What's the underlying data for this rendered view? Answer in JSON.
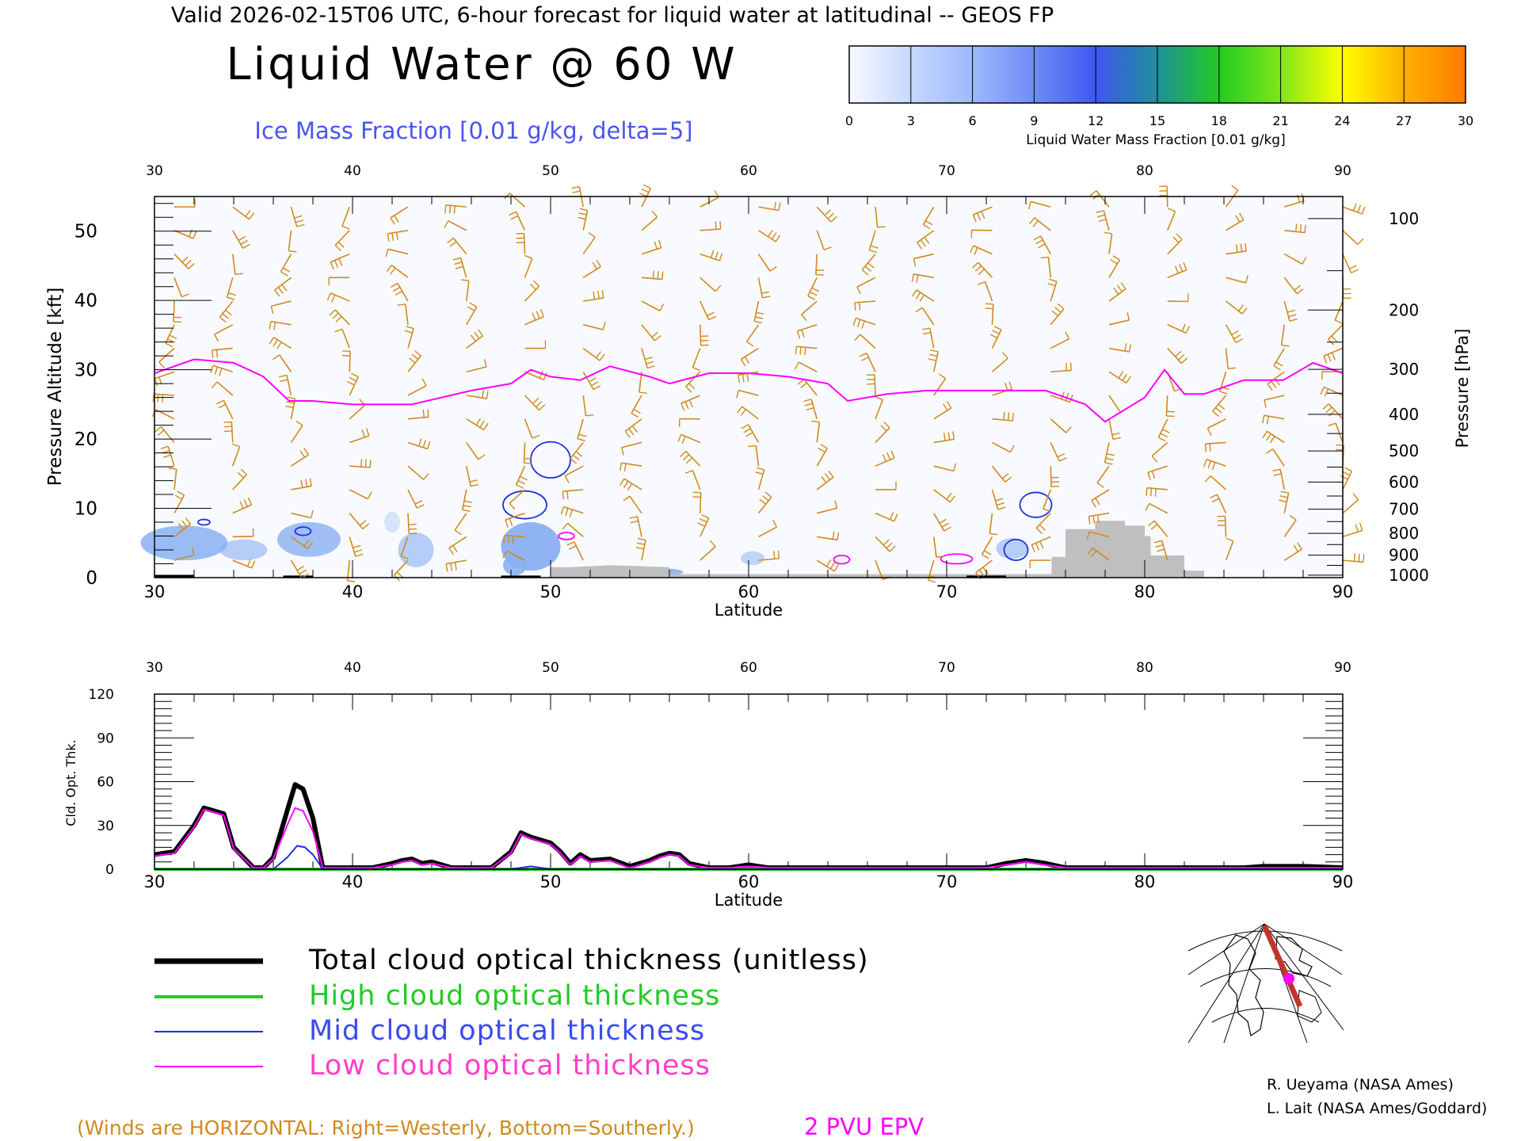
{
  "header": {
    "valid_line": "Valid 2026-02-15T06 UTC, 6-hour forecast for liquid water at latitudinal -- GEOS FP",
    "title": "Liquid Water @ 60 W",
    "subtitle": "Ice Mass Fraction [0.01 g/kg, delta=5]"
  },
  "colorbar": {
    "ticks": [
      "0",
      "3",
      "6",
      "9",
      "12",
      "15",
      "18",
      "21",
      "24",
      "27",
      "30"
    ],
    "label": "Liquid Water Mass Fraction [0.01 g/kg]",
    "colors": [
      "#f7f9ff",
      "#c7d9ff",
      "#9db8ff",
      "#6f8cf5",
      "#3f56f0",
      "#1f8f9a",
      "#22cc22",
      "#7fe61a",
      "#ffff00",
      "#ffb000",
      "#ff7a00",
      "#ff2000"
    ]
  },
  "colors": {
    "wind_barbs": "#d08a1e",
    "epv": "#ff00ff",
    "ice_contour": "#1f2fe0",
    "terrain": "#bfbfbf",
    "ice_fill": "#8ab0f2"
  },
  "upper_panel": {
    "ylabel_left": "Pressure Altitude [kft]",
    "ylabel_right": "Pressure [hPa]",
    "xlabel": "Latitude",
    "x_ticks": [
      "30",
      "40",
      "50",
      "60",
      "70",
      "80",
      "90"
    ],
    "y_ticks_left": [
      "0",
      "10",
      "20",
      "30",
      "40",
      "50"
    ],
    "y_ticks_right": [
      "100",
      "200",
      "300",
      "400",
      "500",
      "600",
      "700",
      "800",
      "900",
      "1000"
    ],
    "y_ticks_right_values": [
      100,
      200,
      300,
      400,
      500,
      600,
      700,
      800,
      900,
      1000
    ]
  },
  "lower_panel": {
    "ylabel": "Cld. Opt. Thk.",
    "xlabel": "Latitude",
    "x_ticks": [
      "30",
      "40",
      "50",
      "60",
      "70",
      "80",
      "90"
    ],
    "y_ticks": [
      "0",
      "30",
      "60",
      "90",
      "120"
    ]
  },
  "legend": [
    {
      "label": "Total cloud optical thickness (unitless)",
      "color": "#000000",
      "width": 6
    },
    {
      "label": "High cloud optical thickness",
      "color": "#22cc22",
      "width": 4
    },
    {
      "label": "Mid cloud optical thickness",
      "color": "#1f2fe0",
      "width": 2
    },
    {
      "label": "Low cloud optical thickness",
      "color": "#ff00ff",
      "width": 2
    }
  ],
  "credits": {
    "line1": "R. Ueyama (NASA Ames)",
    "line2": "L. Lait (NASA Ames/Goddard)"
  },
  "footer": {
    "winds_note": "(Winds are HORIZONTAL: Right=Westerly, Bottom=Southerly.)",
    "epv_label": "2 PVU EPV"
  },
  "chart_data": [
    {
      "type": "area",
      "title": "Liquid Water @ 60 W",
      "subtitle": "Ice Mass Fraction [0.01 g/kg, delta=5]",
      "xlabel": "Latitude",
      "ylabel": "Pressure Altitude [kft]",
      "ylabel_right": "Pressure [hPa]",
      "xlim": [
        30,
        90
      ],
      "ylim": [
        0,
        55
      ],
      "series": [
        {
          "name": "2 PVU EPV",
          "x": [
            30,
            32,
            34,
            35.5,
            36.8,
            38,
            40,
            43,
            46,
            48,
            49,
            50,
            51.5,
            53,
            55,
            56,
            58,
            60,
            62,
            64,
            65,
            67,
            69,
            71,
            73,
            75,
            77,
            78,
            80,
            81,
            82,
            83,
            85,
            87,
            88.5,
            90
          ],
          "y": [
            29.5,
            31.5,
            31,
            29,
            25.5,
            25.5,
            25,
            25,
            27,
            28,
            30,
            29,
            28.5,
            30.5,
            29,
            28,
            29.5,
            29.5,
            29,
            28,
            25.5,
            26.5,
            27,
            27,
            27,
            27,
            25,
            22.5,
            26,
            30,
            26.5,
            26.5,
            28.5,
            28.5,
            31,
            29.5
          ]
        },
        {
          "name": "Total cloud optical thickness (unitless)",
          "x": [
            30,
            31,
            32,
            32.5,
            33.5,
            34,
            35,
            35.5,
            36,
            36.7,
            37.1,
            37.5,
            38,
            38.5,
            39,
            40,
            41,
            42,
            42.5,
            43,
            43.5,
            44,
            45,
            47,
            48,
            48.5,
            49,
            49.5,
            50,
            50.5,
            51,
            51.5,
            52,
            53,
            54,
            55,
            55.5,
            56,
            56.5,
            57,
            58,
            59,
            60,
            61,
            64,
            70,
            72,
            73,
            74,
            75,
            76,
            78,
            80,
            85,
            86,
            88,
            90
          ],
          "y": [
            10,
            12,
            30,
            42,
            38,
            15,
            1,
            1,
            8,
            40,
            58,
            55,
            35,
            1,
            1,
            1,
            1,
            4,
            6,
            7,
            4,
            5,
            1,
            1,
            12,
            25,
            22,
            20,
            18,
            12,
            4,
            10,
            6,
            7,
            2,
            6,
            9,
            11,
            10,
            4,
            1,
            1,
            3,
            1,
            1,
            1,
            1,
            4,
            6,
            4,
            1,
            1,
            1,
            1,
            2,
            2,
            1
          ]
        },
        {
          "name": "High cloud optical thickness",
          "x": [
            30,
            90
          ],
          "y": [
            0,
            0
          ]
        },
        {
          "name": "Mid cloud optical thickness",
          "x": [
            30,
            36,
            36.7,
            37.2,
            37.6,
            38,
            38.5,
            40,
            48,
            48.5,
            49,
            50,
            90
          ],
          "y": [
            0,
            0,
            8,
            16,
            15,
            10,
            0,
            0,
            0,
            1,
            2,
            0,
            0
          ]
        },
        {
          "name": "Low cloud optical thickness",
          "x": [
            30,
            31,
            32,
            32.5,
            33.5,
            34,
            35,
            35.5,
            36,
            36.7,
            37.1,
            37.5,
            38,
            38.5,
            39,
            40,
            41,
            42,
            42.5,
            43,
            43.5,
            44,
            45,
            47,
            48,
            48.5,
            49,
            49.5,
            50,
            50.5,
            51,
            51.5,
            52,
            53,
            54,
            55,
            55.5,
            56,
            56.5,
            57,
            58,
            59,
            60,
            61,
            64,
            70,
            72,
            73,
            74,
            75,
            76,
            78,
            80,
            85,
            86,
            88,
            90
          ],
          "y": [
            9,
            11,
            29,
            41,
            37,
            14,
            1,
            1,
            7,
            30,
            42,
            40,
            26,
            1,
            1,
            1,
            1,
            3,
            5,
            6,
            3,
            4,
            1,
            1,
            11,
            24,
            21,
            19,
            17,
            11,
            3,
            9,
            5,
            6,
            1,
            5,
            8,
            10,
            9,
            3,
            1,
            1,
            2,
            1,
            1,
            1,
            1,
            3,
            5,
            3,
            1,
            1,
            1,
            1,
            1,
            1,
            1
          ]
        }
      ]
    }
  ]
}
